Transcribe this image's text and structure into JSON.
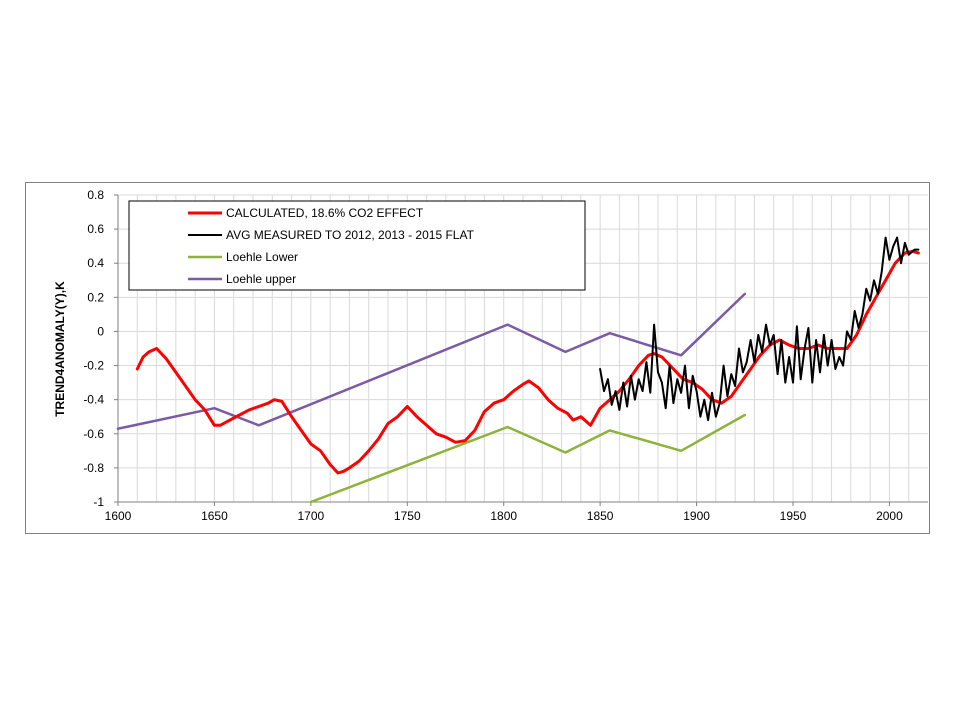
{
  "chart_data": {
    "type": "line",
    "title": "",
    "xlabel": "",
    "ylabel": "TREND4ANOMALY(Y),K",
    "xlim": [
      1600,
      2020
    ],
    "ylim": [
      -1,
      0.8
    ],
    "x_ticks": [
      1600,
      1650,
      1700,
      1750,
      1800,
      1850,
      1900,
      1950,
      2000
    ],
    "x_tick_labels": [
      "1600",
      "1650",
      "1700",
      "1750",
      "1800",
      "1850",
      "1900",
      "1950",
      "2000"
    ],
    "y_ticks": [
      -1,
      -0.8,
      -0.6,
      -0.4,
      -0.2,
      0,
      0.2,
      0.4,
      0.6,
      0.8
    ],
    "y_tick_labels": [
      "-1",
      "-0.8",
      "-0.6",
      "-0.4",
      "-0.2",
      "0",
      "0.2",
      "0.4",
      "0.6",
      "0.8"
    ],
    "grid": true,
    "legend_position": "top-left",
    "series": [
      {
        "name": "CALCULATED, 18.6% CO2 EFFECT",
        "color": "#ff0000",
        "x": [
          1610,
          1613,
          1616,
          1620,
          1625,
          1630,
          1635,
          1640,
          1645,
          1650,
          1653,
          1658,
          1663,
          1668,
          1673,
          1678,
          1681,
          1685,
          1690,
          1695,
          1700,
          1705,
          1710,
          1714,
          1717,
          1720,
          1725,
          1730,
          1735,
          1740,
          1745,
          1750,
          1755,
          1760,
          1765,
          1770,
          1775,
          1780,
          1785,
          1790,
          1795,
          1800,
          1805,
          1810,
          1813,
          1818,
          1823,
          1828,
          1833,
          1836,
          1840,
          1845,
          1850,
          1855,
          1860,
          1865,
          1870,
          1875,
          1878,
          1882,
          1888,
          1893,
          1898,
          1903,
          1908,
          1913,
          1918,
          1923,
          1928,
          1933,
          1938,
          1943,
          1948,
          1953,
          1958,
          1963,
          1968,
          1973,
          1978,
          1983,
          1988,
          1993,
          1998,
          2003,
          2008,
          2012,
          2015
        ],
        "y": [
          -0.22,
          -0.15,
          -0.12,
          -0.1,
          -0.16,
          -0.24,
          -0.32,
          -0.4,
          -0.46,
          -0.55,
          -0.55,
          -0.52,
          -0.49,
          -0.46,
          -0.44,
          -0.42,
          -0.4,
          -0.41,
          -0.5,
          -0.58,
          -0.66,
          -0.7,
          -0.78,
          -0.83,
          -0.82,
          -0.8,
          -0.76,
          -0.7,
          -0.63,
          -0.54,
          -0.5,
          -0.44,
          -0.5,
          -0.55,
          -0.6,
          -0.62,
          -0.65,
          -0.64,
          -0.58,
          -0.47,
          -0.42,
          -0.4,
          -0.35,
          -0.31,
          -0.29,
          -0.33,
          -0.4,
          -0.45,
          -0.48,
          -0.52,
          -0.5,
          -0.55,
          -0.45,
          -0.4,
          -0.35,
          -0.28,
          -0.2,
          -0.14,
          -0.13,
          -0.15,
          -0.22,
          -0.28,
          -0.3,
          -0.34,
          -0.4,
          -0.42,
          -0.38,
          -0.3,
          -0.22,
          -0.14,
          -0.08,
          -0.05,
          -0.08,
          -0.1,
          -0.1,
          -0.08,
          -0.1,
          -0.1,
          -0.1,
          -0.02,
          0.1,
          0.2,
          0.3,
          0.4,
          0.46,
          0.47,
          0.46
        ]
      },
      {
        "name": "AVG MEASURED TO 2012, 2013 - 2015 FLAT",
        "color": "#000000",
        "x": [
          1850,
          1852,
          1854,
          1856,
          1858,
          1860,
          1862,
          1864,
          1866,
          1868,
          1870,
          1872,
          1874,
          1876,
          1878,
          1880,
          1882,
          1884,
          1886,
          1888,
          1890,
          1892,
          1894,
          1896,
          1898,
          1900,
          1902,
          1904,
          1906,
          1908,
          1910,
          1912,
          1914,
          1916,
          1918,
          1920,
          1922,
          1924,
          1926,
          1928,
          1930,
          1932,
          1934,
          1936,
          1938,
          1940,
          1942,
          1944,
          1946,
          1948,
          1950,
          1952,
          1954,
          1956,
          1958,
          1960,
          1962,
          1964,
          1966,
          1968,
          1970,
          1972,
          1974,
          1976,
          1978,
          1980,
          1982,
          1984,
          1986,
          1988,
          1990,
          1992,
          1994,
          1996,
          1998,
          2000,
          2002,
          2004,
          2006,
          2008,
          2010,
          2012,
          2013,
          2015
        ],
        "y": [
          -0.22,
          -0.35,
          -0.28,
          -0.43,
          -0.35,
          -0.46,
          -0.3,
          -0.44,
          -0.26,
          -0.4,
          -0.28,
          -0.35,
          -0.18,
          -0.36,
          0.04,
          -0.24,
          -0.3,
          -0.45,
          -0.2,
          -0.42,
          -0.28,
          -0.36,
          -0.2,
          -0.45,
          -0.26,
          -0.35,
          -0.5,
          -0.4,
          -0.52,
          -0.36,
          -0.5,
          -0.42,
          -0.2,
          -0.38,
          -0.25,
          -0.32,
          -0.1,
          -0.24,
          -0.18,
          -0.05,
          -0.18,
          -0.02,
          -0.12,
          0.04,
          -0.08,
          -0.02,
          -0.25,
          -0.05,
          -0.3,
          -0.15,
          -0.3,
          0.03,
          -0.28,
          -0.1,
          0.02,
          -0.3,
          -0.05,
          -0.24,
          -0.02,
          -0.2,
          -0.05,
          -0.22,
          -0.15,
          -0.2,
          0.0,
          -0.05,
          0.12,
          0.02,
          0.1,
          0.25,
          0.18,
          0.3,
          0.22,
          0.35,
          0.55,
          0.42,
          0.5,
          0.55,
          0.4,
          0.52,
          0.45,
          0.47,
          0.48,
          0.48
        ]
      },
      {
        "name": "Loehle Lower",
        "color": "#8db33b",
        "x": [
          1700,
          1802,
          1832,
          1855,
          1892,
          1925
        ],
        "y": [
          -1.0,
          -0.56,
          -0.71,
          -0.58,
          -0.7,
          -0.49
        ]
      },
      {
        "name": "Loehle upper",
        "color": "#7b5aa6",
        "x": [
          1600,
          1650,
          1673,
          1802,
          1832,
          1855,
          1892,
          1925
        ],
        "y": [
          -0.57,
          -0.45,
          -0.55,
          0.04,
          -0.12,
          -0.01,
          -0.14,
          0.22
        ]
      }
    ]
  }
}
